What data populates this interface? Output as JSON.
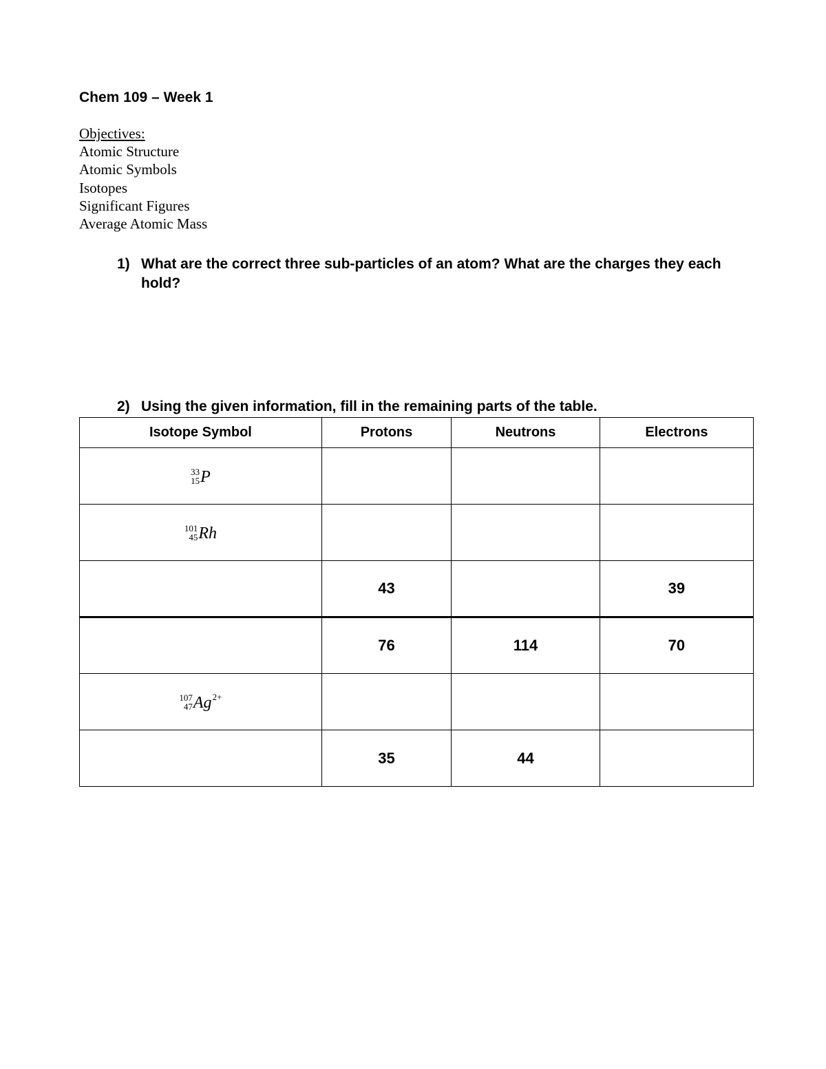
{
  "title": "Chem 109 – Week 1",
  "objectives_label": "Objectives",
  "objectives": [
    "Atomic Structure",
    "Atomic Symbols",
    "Isotopes",
    "Significant Figures",
    "Average Atomic Mass"
  ],
  "questions": {
    "q1": {
      "num": "1)",
      "text": "What are the correct three sub-particles of an atom? What are the charges they each hold?"
    },
    "q2": {
      "num": "2)",
      "text": "Using the given information, fill in the remaining parts of the table."
    }
  },
  "table": {
    "headers": [
      "Isotope Symbol",
      "Protons",
      "Neutrons",
      "Electrons"
    ],
    "col_widths": [
      "25%",
      "25%",
      "25%",
      "25%"
    ],
    "rows": [
      {
        "isotope": {
          "mass": "33",
          "atomic": "15",
          "symbol": "P",
          "charge": ""
        },
        "protons": "",
        "neutrons": "",
        "electrons": ""
      },
      {
        "isotope": {
          "mass": "101",
          "atomic": "45",
          "symbol": "Rh",
          "charge": ""
        },
        "protons": "",
        "neutrons": "",
        "electrons": ""
      },
      {
        "isotope": null,
        "protons": "43",
        "neutrons": "",
        "electrons": "39"
      },
      {
        "isotope": null,
        "protons": "76",
        "neutrons": "114",
        "electrons": "70",
        "thick_top": true
      },
      {
        "isotope": {
          "mass": "107",
          "atomic": "47",
          "symbol": "Ag",
          "charge": "2+"
        },
        "protons": "",
        "neutrons": "",
        "electrons": ""
      },
      {
        "isotope": null,
        "protons": "35",
        "neutrons": "44",
        "electrons": ""
      }
    ]
  },
  "style": {
    "font_body": "Times New Roman",
    "font_heading": "Segoe UI",
    "text_color": "#000000",
    "background": "#ffffff",
    "border_color": "#000000"
  }
}
